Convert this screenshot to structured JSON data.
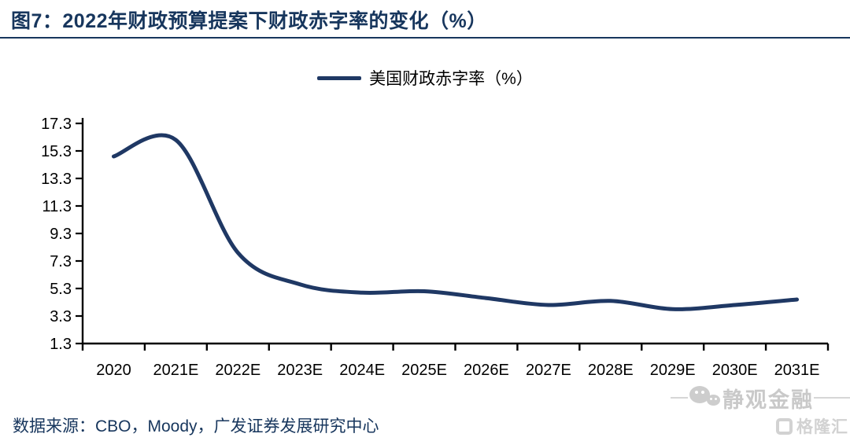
{
  "header": {
    "title": "图7：2022年财政预算提案下财政赤字率的变化（%）"
  },
  "legend": {
    "label": "美国财政赤字率（%）"
  },
  "chart_data": {
    "type": "line",
    "title": "2022年财政预算提案下财政赤字率的变化（%）",
    "categories": [
      "2020",
      "2021E",
      "2022E",
      "2023E",
      "2024E",
      "2025E",
      "2026E",
      "2027E",
      "2028E",
      "2029E",
      "2030E",
      "2031E"
    ],
    "series": [
      {
        "name": "美国财政赤字率（%）",
        "color": "#1f3864",
        "values": [
          14.9,
          16.1,
          7.9,
          5.6,
          5.0,
          5.1,
          4.6,
          4.1,
          4.4,
          3.8,
          4.1,
          4.5
        ]
      }
    ],
    "xlabel": "",
    "ylabel": "",
    "ylim": [
      1.3,
      17.3
    ],
    "y_ticks": [
      17.3,
      15.3,
      13.3,
      11.3,
      9.3,
      7.3,
      5.3,
      3.3,
      1.3
    ],
    "grid": false,
    "smooth": true,
    "legend_position": "top-center"
  },
  "footer": {
    "source": "数据来源：CBO，Moody，广发证券发展研究中心"
  },
  "watermark": {
    "wechat_icon": "wechat-chat-bubbles-icon",
    "account_name": "静观金融",
    "logo_icon": "gelonghui-g-mark-icon",
    "logo_text": "格隆汇"
  },
  "colors": {
    "accent_navy": "#17365d",
    "line_navy": "#1f3864",
    "axis_black": "#000000",
    "watermark_gray": "#c9c9c9"
  }
}
